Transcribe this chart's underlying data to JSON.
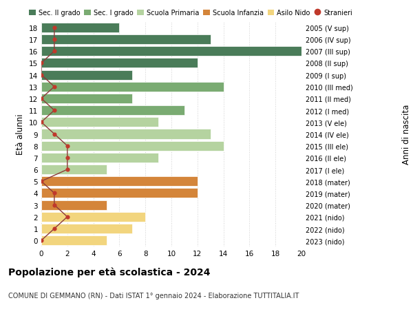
{
  "ages": [
    18,
    17,
    16,
    15,
    14,
    13,
    12,
    11,
    10,
    9,
    8,
    7,
    6,
    5,
    4,
    3,
    2,
    1,
    0
  ],
  "years": [
    "2005 (V sup)",
    "2006 (IV sup)",
    "2007 (III sup)",
    "2008 (II sup)",
    "2009 (I sup)",
    "2010 (III med)",
    "2011 (II med)",
    "2012 (I med)",
    "2013 (V ele)",
    "2014 (IV ele)",
    "2015 (III ele)",
    "2016 (II ele)",
    "2017 (I ele)",
    "2018 (mater)",
    "2019 (mater)",
    "2020 (mater)",
    "2021 (nido)",
    "2022 (nido)",
    "2023 (nido)"
  ],
  "bar_values": [
    6,
    13,
    20,
    12,
    7,
    14,
    7,
    11,
    9,
    13,
    14,
    9,
    5,
    12,
    12,
    5,
    8,
    7,
    5
  ],
  "stranieri": [
    1,
    1,
    1,
    0,
    0,
    1,
    0,
    1,
    0,
    1,
    2,
    2,
    2,
    0,
    1,
    1,
    2,
    1,
    0
  ],
  "bar_colors": [
    "#4a7c59",
    "#4a7c59",
    "#4a7c59",
    "#4a7c59",
    "#4a7c59",
    "#7aab72",
    "#7aab72",
    "#7aab72",
    "#b5d3a0",
    "#b5d3a0",
    "#b5d3a0",
    "#b5d3a0",
    "#b5d3a0",
    "#d4853a",
    "#d4853a",
    "#d4853a",
    "#f2d57e",
    "#f2d57e",
    "#f2d57e"
  ],
  "legend_labels": [
    "Sec. II grado",
    "Sec. I grado",
    "Scuola Primaria",
    "Scuola Infanzia",
    "Asilo Nido",
    "Stranieri"
  ],
  "legend_colors": [
    "#4a7c59",
    "#7aab72",
    "#b5d3a0",
    "#d4853a",
    "#f2d57e",
    "#c0392b"
  ],
  "stranieri_color": "#c0392b",
  "stranieri_line_color": "#8B3A3A",
  "title": "Popolazione per età scolastica - 2024",
  "subtitle": "COMUNE DI GEMMANO (RN) - Dati ISTAT 1° gennaio 2024 - Elaborazione TUTTITALIA.IT",
  "ylabel": "Età alunni",
  "ylabel2": "Anni di nascita",
  "xlim": [
    0,
    20
  ],
  "grid_color": "#d0d0d0"
}
